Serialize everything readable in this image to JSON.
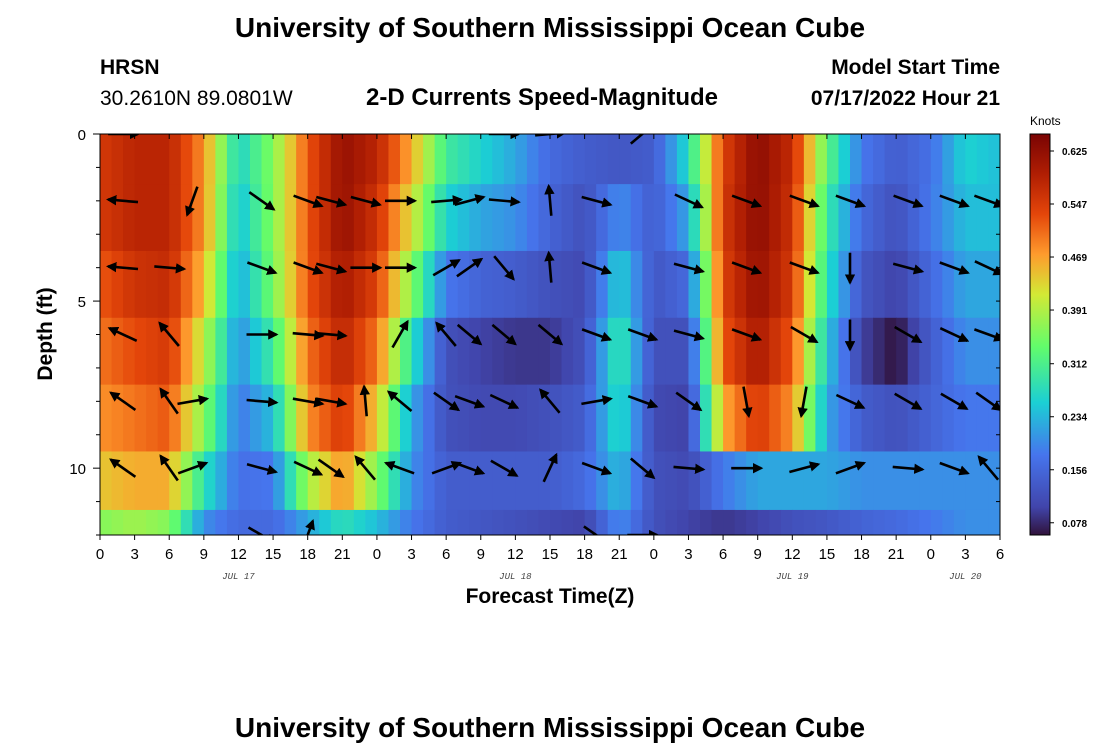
{
  "header": {
    "title": "University of Southern Mississippi Ocean Cube",
    "station": "HRSN",
    "coords": "30.2610N  89.0801W",
    "subtitle": "2-D Currents Speed-Magnitude",
    "model_start_label": "Model Start Time",
    "model_start_value": "07/17/2022 Hour 21"
  },
  "footer": {
    "title": "University of Southern Mississippi Ocean Cube"
  },
  "chart_data": {
    "type": "heatmap",
    "title": "2-D Currents Speed-Magnitude",
    "xlabel": "Forecast Time(Z)",
    "ylabel": "Depth (ft)",
    "xlim_hours": [
      0,
      78
    ],
    "ylim_ft": [
      0,
      12
    ],
    "x_tick_labels": [
      "0",
      "3",
      "6",
      "9",
      "12",
      "15",
      "18",
      "21",
      "0",
      "3",
      "6",
      "9",
      "12",
      "15",
      "18",
      "21",
      "0",
      "3",
      "6",
      "9",
      "12",
      "15",
      "18",
      "21",
      "0",
      "3",
      "6"
    ],
    "y_tick_labels": [
      "0",
      "5",
      "10"
    ],
    "date_labels": [
      {
        "text": "JUL 17",
        "hour": 12
      },
      {
        "text": "JUL 18",
        "hour": 36
      },
      {
        "text": "JUL 19",
        "hour": 60
      },
      {
        "text": "JUL 20",
        "hour": 75
      }
    ],
    "colorbar": {
      "unit": "Knots",
      "min": 0.06,
      "max": 0.65,
      "ticks": [
        "0.625",
        "0.547",
        "0.469",
        "0.391",
        "0.312",
        "0.234",
        "0.156",
        "0.078"
      ]
    },
    "depth_rows_ft": [
      0.5,
      2.5,
      4.5,
      6.5,
      8.5,
      10.5,
      12
    ],
    "speed_rows_knots": [
      [
        0.55,
        0.58,
        0.58,
        0.48,
        0.26,
        0.36,
        0.52,
        0.62,
        0.58,
        0.46,
        0.3,
        0.26,
        0.22,
        0.16,
        0.14,
        0.13,
        0.14,
        0.27,
        0.54,
        0.63,
        0.57,
        0.33,
        0.18,
        0.14,
        0.17,
        0.26,
        0.24
      ],
      [
        0.55,
        0.58,
        0.58,
        0.48,
        0.24,
        0.36,
        0.52,
        0.62,
        0.56,
        0.42,
        0.26,
        0.22,
        0.2,
        0.15,
        0.12,
        0.2,
        0.14,
        0.22,
        0.55,
        0.63,
        0.56,
        0.3,
        0.16,
        0.12,
        0.18,
        0.24,
        0.24
      ],
      [
        0.52,
        0.56,
        0.57,
        0.45,
        0.22,
        0.35,
        0.52,
        0.6,
        0.54,
        0.36,
        0.18,
        0.15,
        0.14,
        0.12,
        0.11,
        0.26,
        0.13,
        0.16,
        0.54,
        0.62,
        0.55,
        0.28,
        0.13,
        0.1,
        0.16,
        0.22,
        0.22
      ],
      [
        0.5,
        0.53,
        0.55,
        0.4,
        0.2,
        0.3,
        0.5,
        0.58,
        0.5,
        0.28,
        0.12,
        0.1,
        0.09,
        0.09,
        0.12,
        0.3,
        0.12,
        0.12,
        0.52,
        0.6,
        0.52,
        0.25,
        0.1,
        0.06,
        0.14,
        0.2,
        0.2
      ],
      [
        0.48,
        0.5,
        0.52,
        0.36,
        0.18,
        0.24,
        0.48,
        0.55,
        0.44,
        0.22,
        0.12,
        0.11,
        0.11,
        0.12,
        0.14,
        0.28,
        0.11,
        0.1,
        0.46,
        0.55,
        0.48,
        0.22,
        0.14,
        0.12,
        0.15,
        0.18,
        0.18
      ],
      [
        0.44,
        0.46,
        0.46,
        0.28,
        0.17,
        0.18,
        0.38,
        0.48,
        0.36,
        0.2,
        0.14,
        0.14,
        0.14,
        0.14,
        0.16,
        0.24,
        0.12,
        0.11,
        0.18,
        0.22,
        0.22,
        0.22,
        0.2,
        0.2,
        0.2,
        0.2,
        0.2
      ],
      [
        0.36,
        0.38,
        0.36,
        0.2,
        0.16,
        0.16,
        0.22,
        0.28,
        0.24,
        0.18,
        0.14,
        0.13,
        0.12,
        0.11,
        0.1,
        0.2,
        0.12,
        0.1,
        0.09,
        0.1,
        0.12,
        0.13,
        0.15,
        0.16,
        0.18,
        0.2,
        0.2
      ]
    ],
    "vector_time_hours": [
      2,
      6,
      8,
      14,
      18,
      20,
      23,
      26,
      30,
      32,
      35,
      39,
      43,
      47,
      51,
      56,
      61,
      65,
      70,
      74,
      77
    ],
    "vector_depth_ft": [
      0,
      2,
      4,
      6,
      8,
      10,
      12
    ],
    "vector_angles_deg": [
      [
        0,
        null,
        null,
        null,
        null,
        null,
        null,
        null,
        null,
        null,
        0,
        5,
        null,
        40,
        null,
        null,
        null,
        null,
        null,
        null,
        null
      ],
      [
        175,
        null,
        -110,
        -35,
        -20,
        -15,
        -15,
        0,
        5,
        15,
        -5,
        95,
        -15,
        null,
        -25,
        -20,
        -20,
        -20,
        -20,
        -20,
        -20
      ],
      [
        175,
        -5,
        null,
        -20,
        -20,
        -15,
        0,
        0,
        30,
        35,
        -50,
        95,
        -20,
        null,
        -15,
        -20,
        -20,
        -90,
        -15,
        -20,
        -25
      ],
      [
        155,
        130,
        null,
        0,
        -5,
        -5,
        null,
        60,
        130,
        -40,
        -40,
        -40,
        -20,
        -20,
        -15,
        -20,
        -30,
        -90,
        -30,
        -25,
        -20
      ],
      [
        145,
        125,
        10,
        -5,
        -10,
        -10,
        95,
        140,
        -35,
        -20,
        -25,
        130,
        10,
        -20,
        -35,
        -80,
        -100,
        -25,
        -30,
        -30,
        -35
      ],
      [
        145,
        125,
        20,
        -15,
        -25,
        -35,
        130,
        160,
        20,
        -20,
        -30,
        65,
        -20,
        -40,
        -5,
        0,
        15,
        20,
        -5,
        -20,
        130
      ],
      [
        null,
        null,
        null,
        -30,
        70,
        null,
        null,
        null,
        null,
        null,
        null,
        null,
        -35,
        0,
        null,
        null,
        null,
        null,
        null,
        null,
        null
      ]
    ]
  }
}
